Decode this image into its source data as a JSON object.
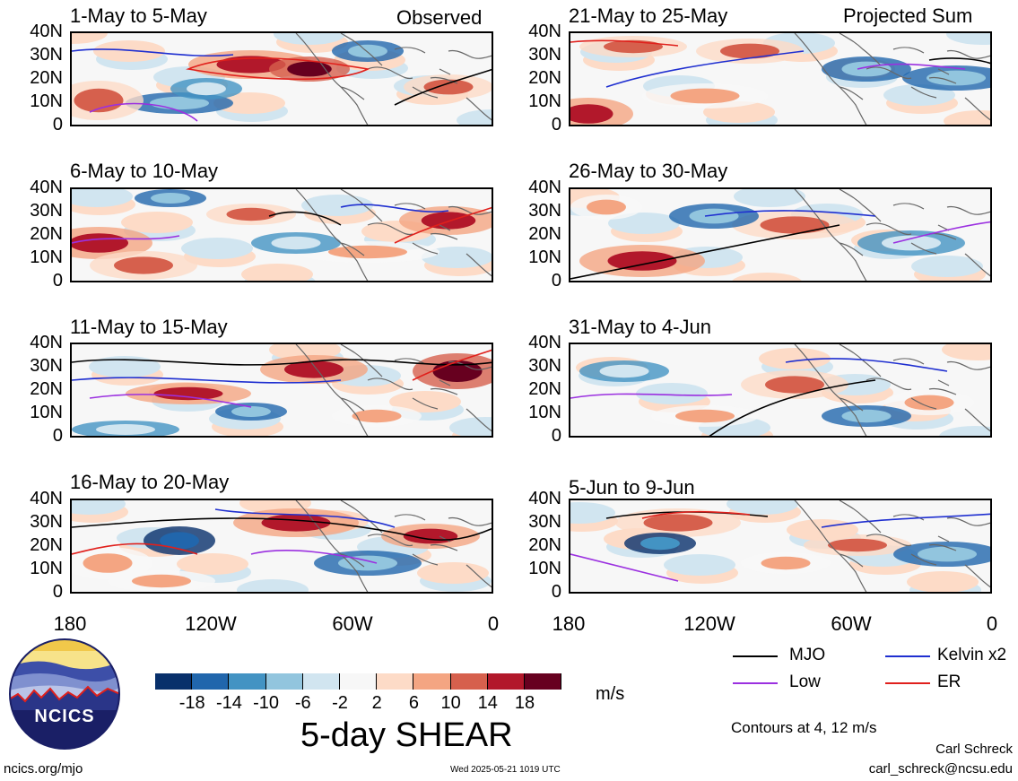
{
  "header": {
    "observed_label": "Observed",
    "projected_label": "Projected Sum"
  },
  "panels": [
    {
      "title": "1-May to 5-May",
      "col": "left"
    },
    {
      "title": "6-May to 10-May",
      "col": "left"
    },
    {
      "title": "11-May to 15-May",
      "col": "left"
    },
    {
      "title": "16-May to 20-May",
      "col": "left"
    },
    {
      "title": "21-May to 25-May",
      "col": "right"
    },
    {
      "title": "26-May to 30-May",
      "col": "right"
    },
    {
      "title": "31-May to 4-Jun",
      "col": "right"
    },
    {
      "title": "5-Jun to 9-Jun",
      "col": "right"
    }
  ],
  "axes": {
    "lat_labels": [
      "40N",
      "30N",
      "20N",
      "10N",
      "0"
    ],
    "lon_labels": [
      "180",
      "120W",
      "60W",
      "0"
    ]
  },
  "colorbar": {
    "tick_labels": [
      "-18",
      "-14",
      "-10",
      "-6",
      "-2",
      "2",
      "6",
      "10",
      "14",
      "18"
    ],
    "colors": [
      "#08306b",
      "#2166ac",
      "#4393c3",
      "#92c5de",
      "#d1e5f0",
      "#f7f7f7",
      "#fddbc7",
      "#f4a582",
      "#d6604d",
      "#b2182b",
      "#67001f"
    ],
    "units": "m/s",
    "title": "5-day SHEAR"
  },
  "legend": {
    "items": [
      {
        "label": "MJO",
        "color": "#000000"
      },
      {
        "label": "Kelvin x2",
        "color": "#1f2fd0"
      },
      {
        "label": "Low",
        "color": "#9b30e0"
      },
      {
        "label": "ER",
        "color": "#e0201c"
      }
    ],
    "contours_note": "Contours at 4, 12 m/s"
  },
  "logo": {
    "text": "NCICS"
  },
  "footer": {
    "url": "ncics.org/mjo",
    "timestamp": "Wed 2025-05-21 1019 UTC",
    "author": "Carl Schreck",
    "email": "carl_schreck@ncsu.edu"
  }
}
